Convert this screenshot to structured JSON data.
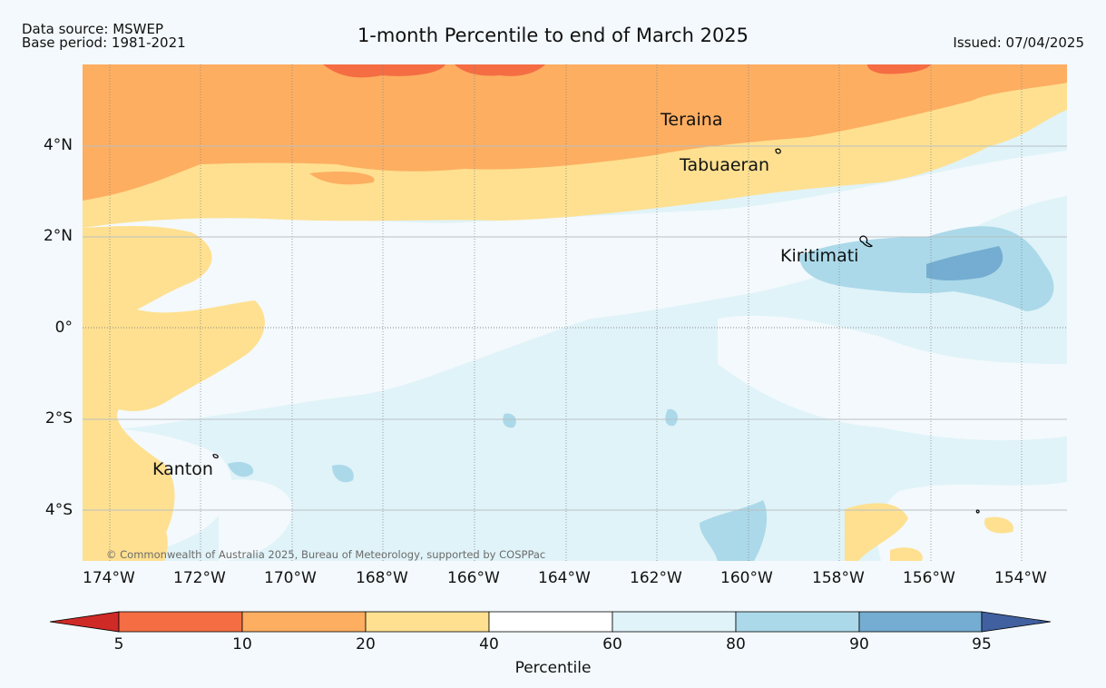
{
  "header": {
    "data_source": "Data source: MSWEP",
    "base_period": "Base period: 1981-2021",
    "title": "1-month Percentile to end of March 2025",
    "issued": "Issued: 07/04/2025"
  },
  "map": {
    "lon_labels": [
      "174°W",
      "172°W",
      "170°W",
      "168°W",
      "166°W",
      "164°W",
      "162°W",
      "160°W",
      "158°W",
      "156°W",
      "154°W"
    ],
    "lat_labels": [
      "4°N",
      "2°N",
      "0°",
      "2°S",
      "4°S"
    ],
    "places": [
      "Teraina",
      "Tabuaeran",
      "Kiritimati",
      "Kanton"
    ],
    "copyright": "© Commonwealth of Australia 2025, Bureau of Meteorology, supported by COSPPac"
  },
  "colorbar": {
    "ticks": [
      "5",
      "10",
      "20",
      "40",
      "60",
      "80",
      "90",
      "95"
    ],
    "label": "Percentile",
    "colors": {
      "below5": "#cf2a26",
      "p5_10": "#f46d43",
      "p10_20": "#fdae61",
      "p20_40": "#fee090",
      "p40_60": "#ffffff",
      "p60_80": "#e0f3f8",
      "p80_90": "#abd9e9",
      "p90_95": "#74add1",
      "above95": "#4060a0"
    }
  }
}
